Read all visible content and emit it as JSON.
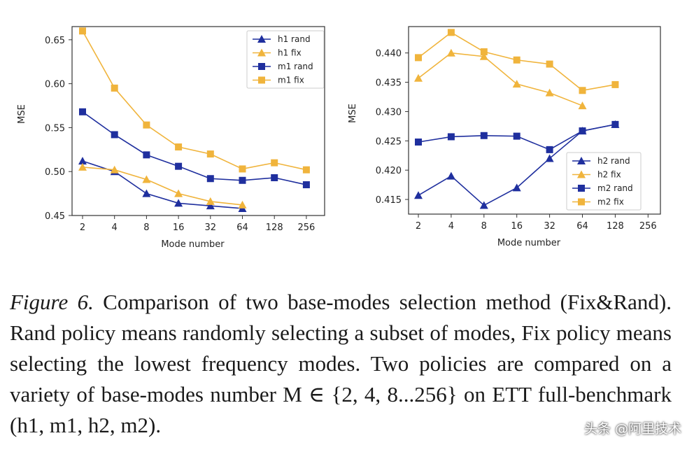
{
  "chart_data": [
    {
      "type": "line",
      "title": "",
      "xlabel": "Mode number",
      "ylabel": "MSE",
      "x_ticks": [
        "2",
        "4",
        "8",
        "16",
        "32",
        "64",
        "128",
        "256"
      ],
      "y_ticks": [
        "0.45",
        "0.50",
        "0.55",
        "0.60",
        "0.65"
      ],
      "ylim": [
        0.45,
        0.665
      ],
      "legend_position": "top-right",
      "series": [
        {
          "name": "h1 rand",
          "marker": "triangle",
          "color": "#1f2f9e",
          "values": [
            0.512,
            0.5,
            0.475,
            0.464,
            0.461,
            0.458,
            null,
            null
          ]
        },
        {
          "name": "h1 fix",
          "marker": "triangle",
          "color": "#f0b43c",
          "values": [
            0.505,
            0.502,
            0.491,
            0.475,
            0.466,
            0.462,
            null,
            null
          ]
        },
        {
          "name": "m1 rand",
          "marker": "square",
          "color": "#1f2f9e",
          "values": [
            0.568,
            0.542,
            0.519,
            0.506,
            0.492,
            0.49,
            0.493,
            0.485
          ]
        },
        {
          "name": "m1 fix",
          "marker": "square",
          "color": "#f0b43c",
          "values": [
            0.66,
            0.595,
            0.553,
            0.528,
            0.52,
            0.503,
            0.51,
            0.502
          ]
        }
      ]
    },
    {
      "type": "line",
      "title": "",
      "xlabel": "Mode number",
      "ylabel": "MSE",
      "x_ticks": [
        "2",
        "4",
        "8",
        "16",
        "32",
        "64",
        "128",
        "256"
      ],
      "y_ticks": [
        "0.415",
        "0.420",
        "0.425",
        "0.430",
        "0.435",
        "0.440"
      ],
      "ylim": [
        0.4125,
        0.4445
      ],
      "legend_position": "bottom-right",
      "series": [
        {
          "name": "h2 rand",
          "marker": "triangle",
          "color": "#1f2f9e",
          "values": [
            0.4157,
            0.419,
            0.414,
            0.417,
            0.422,
            0.4267,
            0.4278,
            null
          ]
        },
        {
          "name": "h2 fix",
          "marker": "triangle",
          "color": "#f0b43c",
          "values": [
            0.4357,
            0.44,
            0.4394,
            0.4347,
            0.4332,
            0.431,
            null,
            null
          ]
        },
        {
          "name": "m2 rand",
          "marker": "square",
          "color": "#1f2f9e",
          "values": [
            0.4248,
            0.4257,
            0.4259,
            0.4258,
            0.4235,
            0.4267,
            0.4278,
            null
          ]
        },
        {
          "name": "m2 fix",
          "marker": "square",
          "color": "#f0b43c",
          "values": [
            0.4392,
            0.4435,
            0.4402,
            0.4388,
            0.4381,
            0.4336,
            0.4346,
            null
          ]
        }
      ]
    }
  ],
  "caption": {
    "label": "Figure 6.",
    "text": " Comparison of two base-modes selection method (Fix&Rand). Rand policy means randomly selecting a subset of modes, Fix policy means selecting the lowest frequency modes. Two policies are compared on a variety of base-modes number M ∈ {2, 4, 8...256} on ETT full-benchmark (h1, m1, h2, m2)."
  },
  "watermark": "头条 @阿里技术"
}
